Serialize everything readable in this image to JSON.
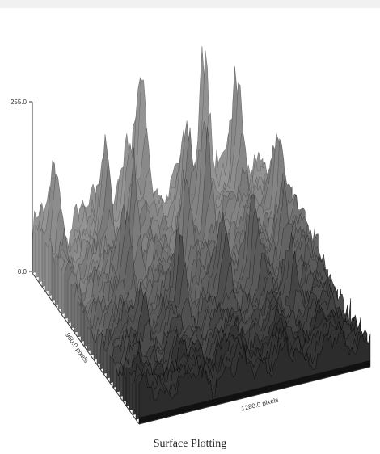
{
  "chart_data": {
    "type": "surface",
    "title": "",
    "caption": "Surface Plotting",
    "z_axis": {
      "min_label": "0.0",
      "max_label": "255.0",
      "range": [
        0,
        255
      ]
    },
    "x_axis_label": "1280.0 pixels",
    "y_axis_label": "960.0 pixels",
    "x_range": [
      0,
      1280
    ],
    "y_range": [
      0,
      960
    ],
    "grid": false,
    "colormap": "grayscale"
  }
}
